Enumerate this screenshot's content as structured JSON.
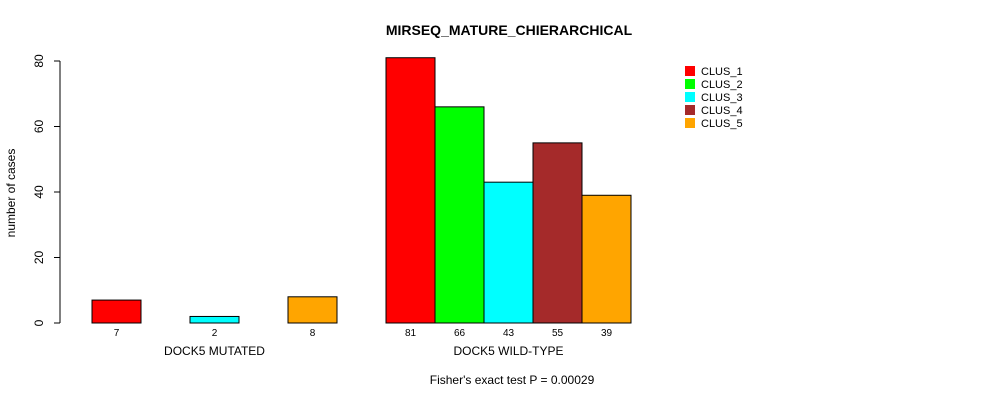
{
  "chart_data": {
    "type": "bar",
    "title": "MIRSEQ_MATURE_CHIERARCHICAL",
    "ylabel": "number of cases",
    "ylim": [
      0,
      80
    ],
    "yticks": [
      0,
      20,
      40,
      60,
      80
    ],
    "groups": [
      {
        "label": "DOCK5 MUTATED",
        "values": [
          7,
          0,
          2,
          0,
          8
        ],
        "value_labels": [
          "7",
          "",
          "2",
          "",
          "8"
        ]
      },
      {
        "label": "DOCK5 WILD-TYPE",
        "values": [
          81,
          66,
          43,
          55,
          39
        ],
        "value_labels": [
          "81",
          "66",
          "43",
          "55",
          "39"
        ]
      }
    ],
    "series": [
      {
        "name": "CLUS_1",
        "color": "#ff0000"
      },
      {
        "name": "CLUS_2",
        "color": "#00ff00"
      },
      {
        "name": "CLUS_3",
        "color": "#00ffff"
      },
      {
        "name": "CLUS_4",
        "color": "#a52a2a"
      },
      {
        "name": "CLUS_5",
        "color": "#ffa500"
      }
    ],
    "footnote": "Fisher's exact test P = 0.00029"
  }
}
